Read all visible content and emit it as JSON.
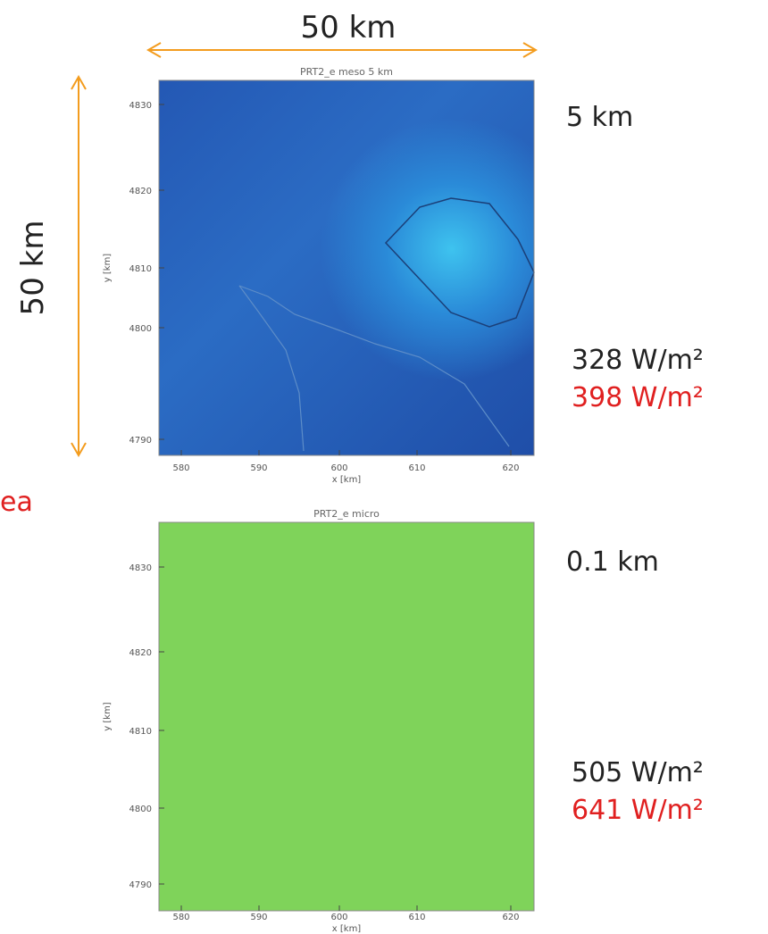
{
  "header": {
    "width_label": "50 km",
    "height_label": "50 km",
    "cut_label": "ea"
  },
  "panels": [
    {
      "title": "PRT2_e meso 5 km",
      "resolution": "5 km",
      "value_black": "328 W/m²",
      "value_red": "398 W/m²",
      "xticks": [
        "580",
        "590",
        "600",
        "610",
        "620"
      ],
      "yticks": [
        "4830",
        "4820",
        "4810",
        "4800",
        "4790"
      ],
      "xlabel": "x [km]",
      "ylabel": "y [km]"
    },
    {
      "title": "PRT2_e micro",
      "resolution": "0.1 km",
      "value_black": "505 W/m²",
      "value_red": "641 W/m²",
      "xticks": [
        "580",
        "590",
        "600",
        "610",
        "620"
      ],
      "yticks": [
        "4830",
        "4820",
        "4810",
        "4800",
        "4790"
      ],
      "xlabel": "x [km]",
      "ylabel": "y [km]"
    }
  ]
}
